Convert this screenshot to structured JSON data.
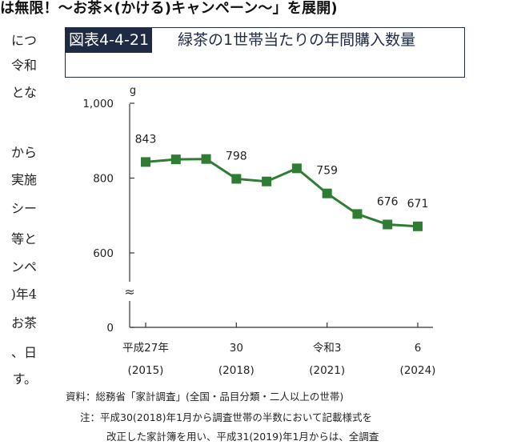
{
  "heading": "は無限！～お茶×(かける)キャンペーン～」を展開)",
  "body_text_fragments": [
    "につ",
    "令和",
    "とな",
    "から",
    "実施",
    "シー",
    "等と",
    "ンペ",
    ")年4",
    "お茶",
    "、日",
    "す。"
  ],
  "figure": {
    "number": "図表4-4-21",
    "title": "緑茶の1世帯当たりの年間購入数量"
  },
  "chart_data": {
    "type": "line",
    "ylabel": "g",
    "ylim": [
      0,
      1000
    ],
    "y_ticks": [
      "0",
      "600",
      "800",
      "1,000"
    ],
    "axis_break": "≈",
    "x": [
      2015,
      2016,
      2017,
      2018,
      2019,
      2020,
      2021,
      2022,
      2023,
      2024
    ],
    "x_tick_labels": [
      {
        "top": "平成27年",
        "bottom": "(2015)"
      },
      {
        "top": "30",
        "bottom": "(2018)"
      },
      {
        "top": "令和3",
        "bottom": "(2021)"
      },
      {
        "top": "6",
        "bottom": "(2024)"
      }
    ],
    "series": [
      {
        "values": [
          843,
          850,
          851,
          798,
          791,
          826,
          759,
          704,
          676,
          671
        ],
        "color": "#2e7d32"
      }
    ],
    "data_labels": [
      {
        "index": 0,
        "text": "843"
      },
      {
        "index": 3,
        "text": "798"
      },
      {
        "index": 6,
        "text": "759"
      },
      {
        "index": 8,
        "text": "676"
      },
      {
        "index": 9,
        "text": "671"
      }
    ],
    "grid": false
  },
  "source": "資料：総務省「家計調査」(全国・品目分類・二人以上の世帯)",
  "note_line1": "注：平成30(2018)年1月から調査世帯の半数において記載様式を",
  "note_line2": "改正した家計簿を用い、平成31(2019)年1月からは、全調査"
}
